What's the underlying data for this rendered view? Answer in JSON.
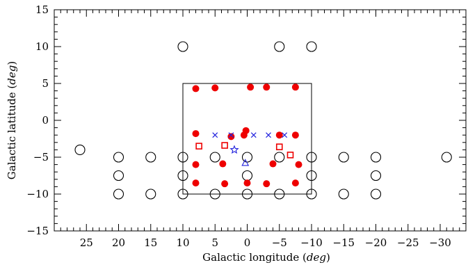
{
  "chart_data": {
    "type": "scatter",
    "xlabel": "Galactic longitude",
    "xlabel_unit": "deg",
    "ylabel": "Galactic latitude",
    "ylabel_unit": "deg",
    "xlim": [
      30,
      -34
    ],
    "ylim": [
      -15,
      15
    ],
    "x_ticks": [
      25,
      20,
      15,
      10,
      5,
      0,
      -5,
      -10,
      -15,
      -20,
      -25,
      -30
    ],
    "x_tick_labels": [
      "25",
      "20",
      "15",
      "10",
      "5",
      "0",
      "−5",
      "−10",
      "−15",
      "−20",
      "−25",
      "−30"
    ],
    "y_ticks": [
      -15,
      -10,
      -5,
      0,
      5,
      10,
      15
    ],
    "y_tick_labels": [
      "−15",
      "−10",
      "−5",
      "0",
      "5",
      "10",
      "15"
    ],
    "grid": false,
    "box_region": {
      "x": [
        10,
        -10
      ],
      "y": [
        -10,
        5
      ]
    },
    "series": [
      {
        "marker": "open-circle",
        "color": "#000000",
        "points": [
          [
            10,
            10
          ],
          [
            -5,
            10
          ],
          [
            -10,
            10
          ],
          [
            26,
            -4
          ],
          [
            20,
            -5
          ],
          [
            15,
            -5
          ],
          [
            10,
            -5
          ],
          [
            5,
            -5
          ],
          [
            0,
            -5
          ],
          [
            -5,
            -5
          ],
          [
            -10,
            -5
          ],
          [
            -15,
            -5
          ],
          [
            -20,
            -5
          ],
          [
            -31,
            -5
          ],
          [
            20,
            -7.5
          ],
          [
            10,
            -7.5
          ],
          [
            0,
            -7.5
          ],
          [
            -10,
            -7.5
          ],
          [
            -20,
            -7.5
          ],
          [
            20,
            -10
          ],
          [
            15,
            -10
          ],
          [
            10,
            -10
          ],
          [
            5,
            -10
          ],
          [
            0,
            -10
          ],
          [
            -5,
            -10
          ],
          [
            -10,
            -10
          ],
          [
            -15,
            -10
          ],
          [
            -20,
            -10
          ]
        ]
      },
      {
        "marker": "filled-circle",
        "color": "#ee0000",
        "points": [
          [
            8,
            4.3
          ],
          [
            5,
            4.4
          ],
          [
            -0.5,
            4.5
          ],
          [
            -3,
            4.5
          ],
          [
            -7.5,
            4.5
          ],
          [
            8,
            -1.8
          ],
          [
            2.5,
            -2.2
          ],
          [
            0.2,
            -1.4
          ],
          [
            0.5,
            -2
          ],
          [
            -5,
            -2
          ],
          [
            -7.5,
            -2
          ],
          [
            8,
            -6
          ],
          [
            3.8,
            -5.9
          ],
          [
            -4,
            -5.9
          ],
          [
            -8,
            -6
          ],
          [
            8,
            -8.5
          ],
          [
            3.5,
            -8.6
          ],
          [
            0,
            -8.5
          ],
          [
            -3,
            -8.6
          ],
          [
            -7.5,
            -8.5
          ]
        ]
      },
      {
        "marker": "open-square",
        "color": "#ee0000",
        "points": [
          [
            7.5,
            -3.5
          ],
          [
            3.5,
            -3.4
          ],
          [
            -5,
            -3.6
          ],
          [
            -6.7,
            -4.7
          ]
        ]
      },
      {
        "marker": "cross",
        "color": "#2222dd",
        "points": [
          [
            5,
            -2
          ],
          [
            2.5,
            -2
          ],
          [
            -1,
            -2
          ],
          [
            -3.3,
            -2
          ],
          [
            -5.8,
            -2
          ]
        ]
      },
      {
        "marker": "star",
        "color": "#2222dd",
        "points": [
          [
            2,
            -4
          ]
        ]
      },
      {
        "marker": "open-triangle",
        "color": "#2222dd",
        "points": [
          [
            0.3,
            -5.8
          ]
        ]
      }
    ]
  }
}
